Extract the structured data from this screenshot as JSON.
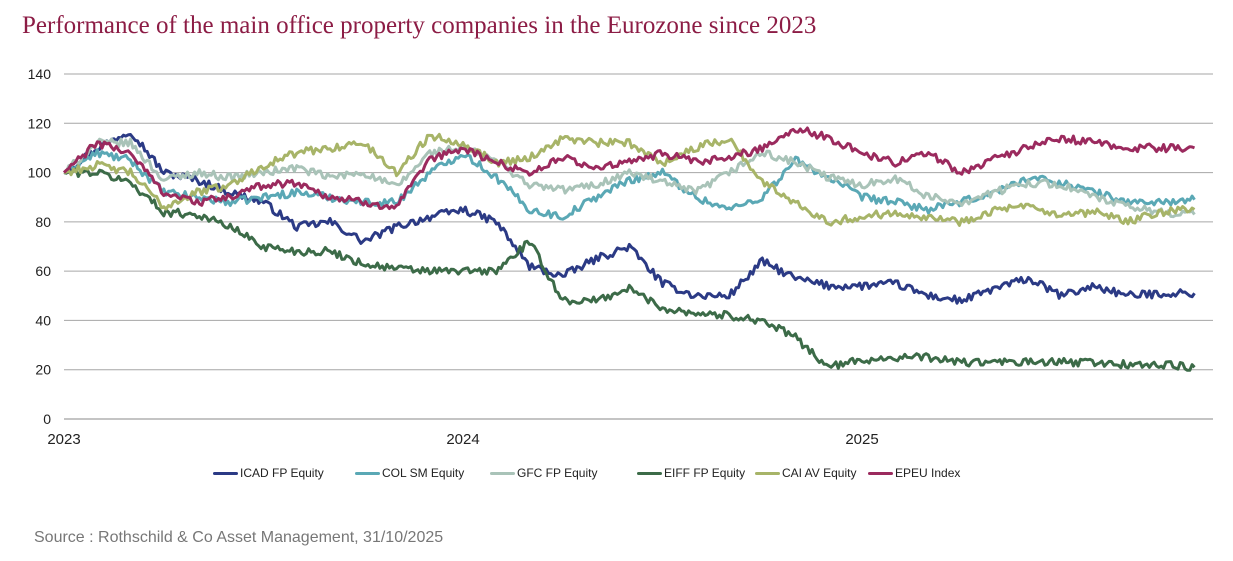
{
  "title": "Performance of the main office property companies in the Eurozone since 2023",
  "source": "Source : Rothschild & Co Asset Management, 31/10/2025",
  "chart_data": {
    "type": "line",
    "title": "Performance of the main office property companies in the Eurozone since 2023",
    "xlabel": "",
    "ylabel": "",
    "ylim": [
      0,
      140
    ],
    "yticks": [
      0,
      20,
      40,
      60,
      80,
      100,
      120,
      140
    ],
    "xticks": [
      {
        "label": "2023",
        "t": 0
      },
      {
        "label": "2024",
        "t": 12
      },
      {
        "label": "2025",
        "t": 24
      }
    ],
    "x_unit": "months since Jan 2023",
    "x": [
      0,
      1,
      2,
      3,
      4,
      5,
      6,
      7,
      8,
      9,
      10,
      11,
      12,
      13,
      14,
      15,
      16,
      17,
      18,
      19,
      20,
      21,
      22,
      23,
      24,
      25,
      26,
      27,
      28,
      29,
      30,
      31,
      32,
      33,
      34
    ],
    "xlim": [
      0,
      34
    ],
    "grid": true,
    "legend_position": "bottom",
    "series": [
      {
        "name": "ICAD FP Equity",
        "color": "#2b3a85",
        "values": [
          100,
          110,
          117,
          100,
          97,
          92,
          88,
          78,
          80,
          72,
          78,
          82,
          85,
          80,
          62,
          58,
          65,
          70,
          55,
          50,
          50,
          64,
          57,
          54,
          54,
          55,
          50,
          48,
          53,
          57,
          50,
          54,
          50,
          51,
          51
        ]
      },
      {
        "name": "COL SM Equity",
        "color": "#5aa8b5",
        "values": [
          100,
          108,
          105,
          92,
          90,
          88,
          90,
          92,
          90,
          88,
          88,
          100,
          108,
          98,
          85,
          82,
          90,
          97,
          100,
          90,
          85,
          90,
          105,
          98,
          90,
          88,
          85,
          88,
          92,
          98,
          96,
          92,
          88,
          88,
          89
        ]
      },
      {
        "name": "GFC FP Equity",
        "color": "#a9c3b8",
        "values": [
          100,
          112,
          112,
          97,
          100,
          98,
          100,
          102,
          98,
          100,
          94,
          108,
          110,
          105,
          95,
          93,
          95,
          100,
          96,
          92,
          100,
          108,
          104,
          98,
          95,
          98,
          90,
          88,
          92,
          96,
          95,
          90,
          86,
          84,
          83
        ]
      },
      {
        "name": "EIFF FP Equity",
        "color": "#3c6b48",
        "values": [
          100,
          100,
          96,
          84,
          83,
          78,
          70,
          68,
          68,
          63,
          61,
          60,
          60,
          60,
          72,
          48,
          48,
          53,
          45,
          43,
          42,
          40,
          33,
          21,
          24,
          25,
          25,
          23,
          23,
          23,
          23,
          23,
          22,
          22,
          21
        ]
      },
      {
        "name": "CAI AV Equity",
        "color": "#a7b468",
        "values": [
          100,
          103,
          100,
          86,
          92,
          95,
          103,
          108,
          110,
          112,
          100,
          115,
          112,
          104,
          106,
          114,
          112,
          112,
          104,
          110,
          114,
          96,
          88,
          80,
          82,
          84,
          82,
          80,
          85,
          86,
          82,
          84,
          80,
          84,
          85
        ]
      },
      {
        "name": "EPEU Index",
        "color": "#9b2a5e",
        "values": [
          100,
          112,
          108,
          92,
          88,
          90,
          95,
          96,
          90,
          88,
          86,
          105,
          110,
          104,
          100,
          106,
          102,
          104,
          108,
          104,
          106,
          110,
          118,
          114,
          108,
          104,
          108,
          100,
          106,
          110,
          114,
          112,
          110,
          110,
          110
        ]
      }
    ]
  },
  "legend": [
    {
      "label": "ICAD FP Equity",
      "color": "#2b3a85"
    },
    {
      "label": "COL SM Equity",
      "color": "#5aa8b5"
    },
    {
      "label": "GFC FP Equity",
      "color": "#a9c3b8"
    },
    {
      "label": "EIFF FP Equity",
      "color": "#3c6b48"
    },
    {
      "label": "CAI AV Equity",
      "color": "#a7b468"
    },
    {
      "label": "EPEU Index",
      "color": "#9b2a5e"
    }
  ]
}
